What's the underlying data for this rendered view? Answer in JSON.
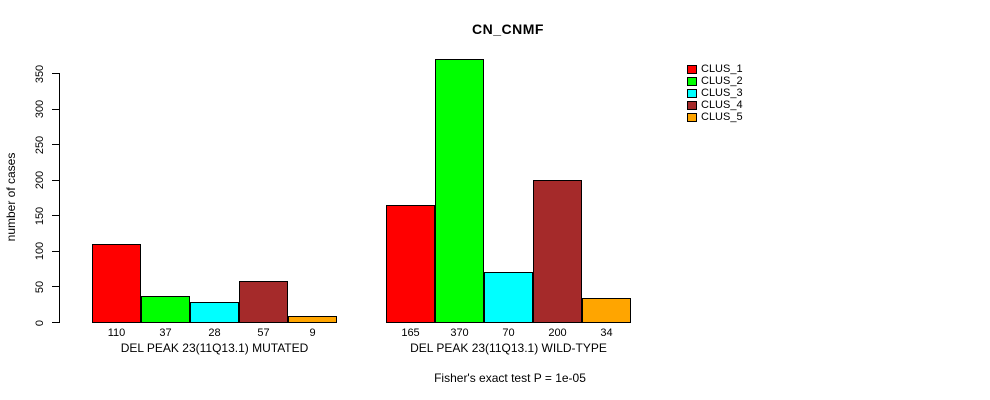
{
  "chart_data": {
    "type": "bar",
    "title": "CN_CNMF",
    "ylabel": "number of cases",
    "xlabel": "",
    "ylim": [
      0,
      350
    ],
    "yticks": [
      0,
      50,
      100,
      150,
      200,
      250,
      300,
      350
    ],
    "grid": false,
    "legend_position": "top-right",
    "categories": [
      "DEL PEAK 23(11Q13.1) MUTATED",
      "DEL PEAK 23(11Q13.1) WILD-TYPE"
    ],
    "series": [
      {
        "name": "CLUS_1",
        "color": "#FF0000",
        "values": [
          110,
          165
        ]
      },
      {
        "name": "CLUS_2",
        "color": "#00FF00",
        "values": [
          37,
          370
        ]
      },
      {
        "name": "CLUS_3",
        "color": "#00FFFF",
        "values": [
          28,
          70
        ]
      },
      {
        "name": "CLUS_4",
        "color": "#A52A2A",
        "values": [
          57,
          200
        ]
      },
      {
        "name": "CLUS_5",
        "color": "#FFA500",
        "values": [
          9,
          34
        ]
      }
    ],
    "bar_value_labels": [
      [
        "110",
        "37",
        "28",
        "57",
        "9"
      ],
      [
        "165",
        "370",
        "70",
        "200",
        "34"
      ]
    ],
    "footnote": "Fisher's exact test P = 1e-05"
  }
}
